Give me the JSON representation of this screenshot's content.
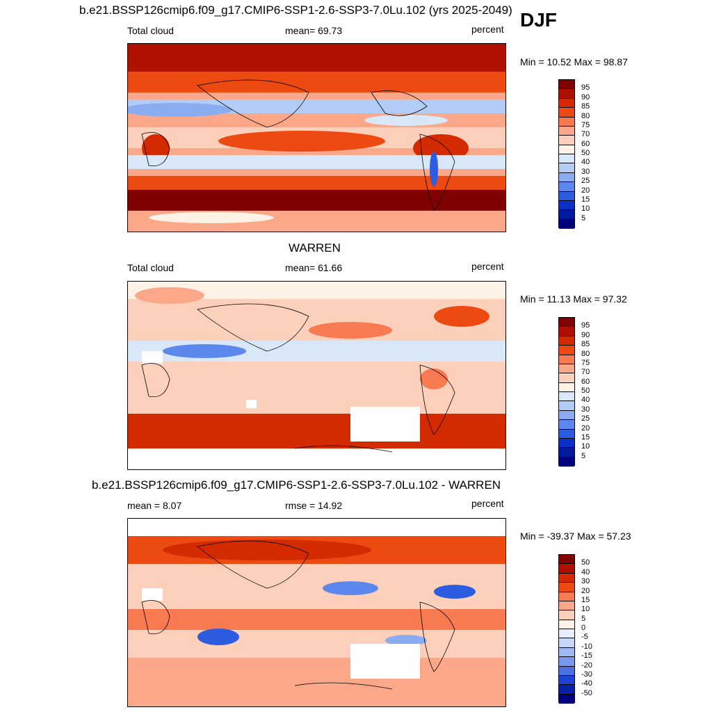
{
  "header": {
    "case_title": "b.e21.BSSP126cmip6.f09_g17.CMIP6-SSP1-2.6-SSP3-7.0Lu.102 (yrs 2025-2049)",
    "season": "DJF"
  },
  "panels": [
    {
      "id": "model",
      "left_label": "Total cloud",
      "stat_label": "mean=  69.73",
      "units": "percent",
      "minmax": "Min =  10.52 Max =  98.87",
      "colorbar_ticks": [
        "95",
        "90",
        "85",
        "80",
        "75",
        "70",
        "60",
        "50",
        "40",
        "30",
        "25",
        "20",
        "15",
        "10",
        "5"
      ]
    },
    {
      "id": "obs",
      "title": "WARREN",
      "left_label": "Total cloud",
      "stat_label": "mean=  61.66",
      "units": "percent",
      "minmax": "Min =  11.13 Max =  97.32",
      "colorbar_ticks": [
        "95",
        "90",
        "85",
        "80",
        "75",
        "70",
        "60",
        "50",
        "40",
        "30",
        "25",
        "20",
        "15",
        "10",
        "5"
      ]
    },
    {
      "id": "diff",
      "title": "b.e21.BSSP126cmip6.f09_g17.CMIP6-SSP1-2.6-SSP3-7.0Lu.102 - WARREN",
      "left_label": "mean =   8.07",
      "stat_label": "rmse =  14.92",
      "units": "percent",
      "minmax": "Min = -39.37 Max =  57.23",
      "colorbar_ticks": [
        "50",
        "40",
        "30",
        "20",
        "15",
        "10",
        "5",
        "0",
        "-5",
        "-10",
        "-15",
        "-20",
        "-30",
        "-40",
        "-50"
      ]
    }
  ],
  "colors": {
    "abs_scale": [
      "#800000",
      "#b01000",
      "#d42a00",
      "#ec4a10",
      "#f77a50",
      "#fba789",
      "#fdd0bc",
      "#fff3e8",
      "#d8e8f8",
      "#b3ccf6",
      "#8aadf2",
      "#5c87ec",
      "#2c5ce0",
      "#0a30c8",
      "#001a9e",
      "#00007f"
    ],
    "diff_scale": [
      "#800000",
      "#b01000",
      "#d42a00",
      "#ec4a10",
      "#f77a50",
      "#fba789",
      "#fdd0bc",
      "#fff3e8",
      "#e6eefb",
      "#c5d7f6",
      "#9fbaf2",
      "#7898ee",
      "#4a70e6",
      "#1d45d4",
      "#0620a8",
      "#00007f"
    ]
  }
}
